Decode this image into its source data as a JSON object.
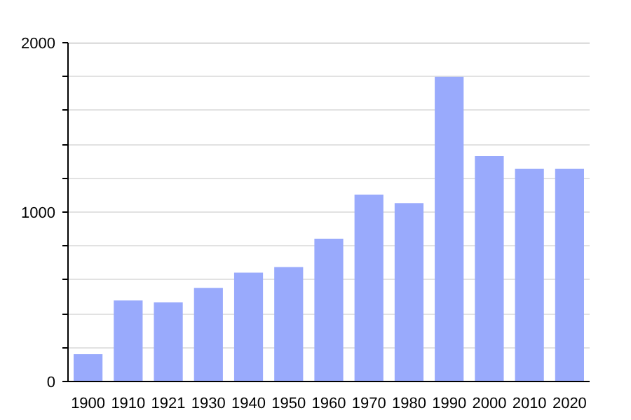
{
  "chart_data": {
    "type": "bar",
    "categories": [
      "1900",
      "1910",
      "1921",
      "1930",
      "1940",
      "1950",
      "1960",
      "1970",
      "1980",
      "1990",
      "2000",
      "2010",
      "2020"
    ],
    "values": [
      161,
      478,
      467,
      553,
      643,
      676,
      843,
      1103,
      1053,
      1799,
      1331,
      1256,
      1256
    ],
    "color": "#99aafc",
    "ylim": [
      0,
      2000
    ],
    "yticks": [
      0,
      {
        "value": 200,
        "label": null
      },
      {
        "value": 400,
        "label": null
      },
      {
        "value": 600,
        "label": null
      },
      {
        "value": 800,
        "label": null
      },
      1000,
      {
        "value": 1200,
        "label": null
      },
      {
        "value": 1400,
        "label": null
      },
      {
        "value": 1600,
        "label": null
      },
      {
        "value": 1800,
        "label": null
      },
      2000
    ],
    "grid": "y"
  }
}
